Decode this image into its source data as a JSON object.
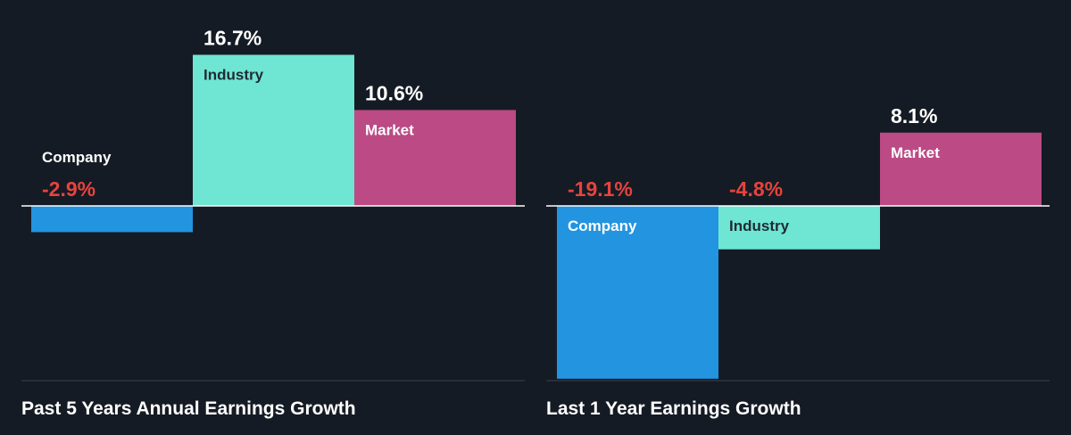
{
  "colors": {
    "background": "#151b24",
    "company": "#2394e0",
    "industry": "#6ee6d3",
    "market": "#bb4a85",
    "positive_value": "#ffffff",
    "negative_value": "#e8433d",
    "axis": "#ffffff",
    "divider": "#3a414b"
  },
  "chart_data": [
    {
      "type": "bar",
      "title": "Past 5 Years Annual Earnings Growth",
      "categories": [
        "Company",
        "Industry",
        "Market"
      ],
      "values": [
        -2.9,
        16.7,
        10.6
      ],
      "value_labels": [
        "-2.9%",
        "16.7%",
        "10.6%"
      ],
      "unit": "%"
    },
    {
      "type": "bar",
      "title": "Last 1 Year Earnings Growth",
      "categories": [
        "Company",
        "Industry",
        "Market"
      ],
      "values": [
        -19.1,
        -4.8,
        8.1
      ],
      "value_labels": [
        "-19.1%",
        "-4.8%",
        "8.1%"
      ],
      "unit": "%"
    }
  ]
}
